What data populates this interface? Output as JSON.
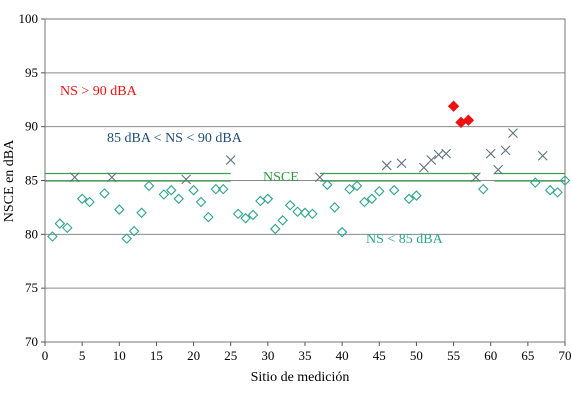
{
  "chart_data": {
    "type": "scatter",
    "xlabel": "Sitio  de medición",
    "ylabel": "NSCE en dBA",
    "xlim": [
      0,
      70
    ],
    "ylim": [
      70,
      100
    ],
    "xticks": [
      "0",
      "5",
      "10",
      "15",
      "20",
      "25",
      "30",
      "35",
      "40",
      "45",
      "50",
      "55",
      "60",
      "65",
      "70"
    ],
    "yticks": [
      "70",
      "75",
      "80",
      "85",
      "90",
      "95",
      "100"
    ],
    "grid": "horizontal",
    "colors": {
      "under": "#2ea58c",
      "between": "#607080",
      "over": "#ee1111",
      "nsce": "#3aa04a"
    },
    "annotations": {
      "over": "NS > 90 dBA",
      "between": "85 dBA < NS < 90 dBA",
      "nsce": "NSCE",
      "under": "NS < 85 dBA"
    },
    "nsce_line": {
      "value": 85.3
    },
    "series": [
      {
        "marker": "open-diamond",
        "points": [
          [
            1,
            79.8
          ],
          [
            2,
            81.0
          ],
          [
            3,
            80.6
          ],
          [
            5,
            83.3
          ],
          [
            6,
            83.0
          ],
          [
            8,
            83.8
          ],
          [
            10,
            82.3
          ],
          [
            11,
            79.6
          ],
          [
            12,
            80.3
          ],
          [
            13,
            82.0
          ],
          [
            14,
            84.5
          ],
          [
            16,
            83.7
          ],
          [
            17,
            84.1
          ],
          [
            18,
            83.3
          ],
          [
            20,
            84.1
          ],
          [
            21,
            83.0
          ],
          [
            22,
            81.6
          ],
          [
            23,
            84.2
          ],
          [
            24,
            84.2
          ],
          [
            26,
            81.9
          ],
          [
            27,
            81.5
          ],
          [
            28,
            81.8
          ],
          [
            29,
            83.1
          ],
          [
            30,
            83.3
          ],
          [
            31,
            80.5
          ],
          [
            32,
            81.3
          ],
          [
            33,
            82.7
          ],
          [
            34,
            82.1
          ],
          [
            35,
            82.0
          ],
          [
            36,
            81.9
          ],
          [
            38,
            84.6
          ],
          [
            39,
            82.5
          ],
          [
            40,
            80.2
          ],
          [
            41,
            84.2
          ],
          [
            42,
            84.5
          ],
          [
            43,
            83.0
          ],
          [
            44,
            83.3
          ],
          [
            45,
            84.0
          ],
          [
            47,
            84.1
          ],
          [
            49,
            83.3
          ],
          [
            50,
            83.6
          ],
          [
            59,
            84.2
          ],
          [
            66,
            84.8
          ],
          [
            68,
            84.1
          ],
          [
            69,
            83.9
          ],
          [
            70,
            85.0
          ]
        ]
      },
      {
        "marker": "x",
        "points": [
          [
            4,
            85.3
          ],
          [
            9,
            85.3
          ],
          [
            19,
            85.1
          ],
          [
            25,
            86.9
          ],
          [
            37,
            85.3
          ],
          [
            46,
            86.4
          ],
          [
            48,
            86.6
          ],
          [
            51,
            86.2
          ],
          [
            52,
            86.9
          ],
          [
            53,
            87.4
          ],
          [
            54,
            87.5
          ],
          [
            58,
            85.3
          ],
          [
            60,
            87.5
          ],
          [
            61,
            86.0
          ],
          [
            62,
            87.8
          ],
          [
            63,
            89.4
          ],
          [
            67,
            87.3
          ]
        ]
      },
      {
        "marker": "filled-diamond",
        "points": [
          [
            55,
            91.9
          ],
          [
            56,
            90.4
          ],
          [
            57,
            90.6
          ]
        ]
      }
    ]
  }
}
